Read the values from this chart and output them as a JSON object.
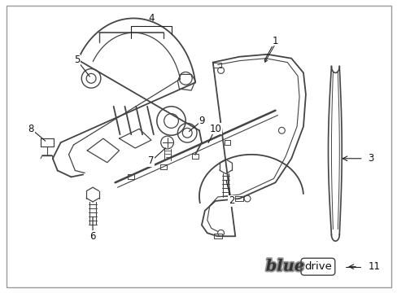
{
  "background_color": "#ffffff",
  "border_color": "#cccccc",
  "fig_width": 4.89,
  "fig_height": 3.6,
  "dpi": 100,
  "line_color": "#444444",
  "arrow_color": "#222222"
}
